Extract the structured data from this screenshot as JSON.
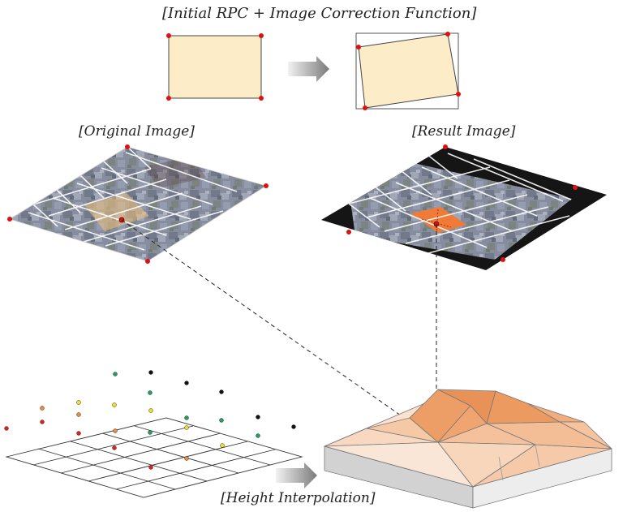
{
  "labels": {
    "top": "[Initial RPC + Image Correction Function]",
    "original": "[Original Image]",
    "result": "[Result Image]",
    "height": "[Height Interpolation]"
  },
  "colors": {
    "cream": "#fdecc8",
    "control_point": "#e01010",
    "terrain_dark": "#ee9a5c",
    "terrain_light": "#f6c9a8",
    "tile_highlight": "#f07a36"
  },
  "height_points": {
    "legend_colors": [
      "#e0201a",
      "#ee8a3a",
      "#f0e020",
      "#22a060",
      "#101010"
    ]
  }
}
